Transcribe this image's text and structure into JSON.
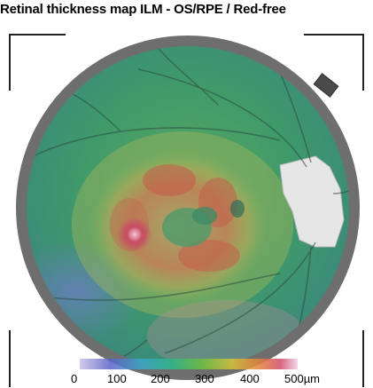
{
  "title": "Retinal thickness map ILM - OS/RPE / Red-free",
  "scale": {
    "ticks": [
      "0",
      "100",
      "200",
      "300",
      "400",
      "500µm"
    ],
    "colors": [
      "#c8c0e6",
      "#5a63c9",
      "#3aa7c9",
      "#33b58a",
      "#6bbf3e",
      "#d9c23a",
      "#e3843a",
      "#d24a6a",
      "#f1d0e6"
    ]
  },
  "image": {
    "description_icon": "fundus-thickness-map-icon",
    "ring_color": "#6e6e6e",
    "base_color": "#3f9a6a",
    "thick_color": "#c45a4a",
    "disc_color": "#e6e6e6"
  }
}
